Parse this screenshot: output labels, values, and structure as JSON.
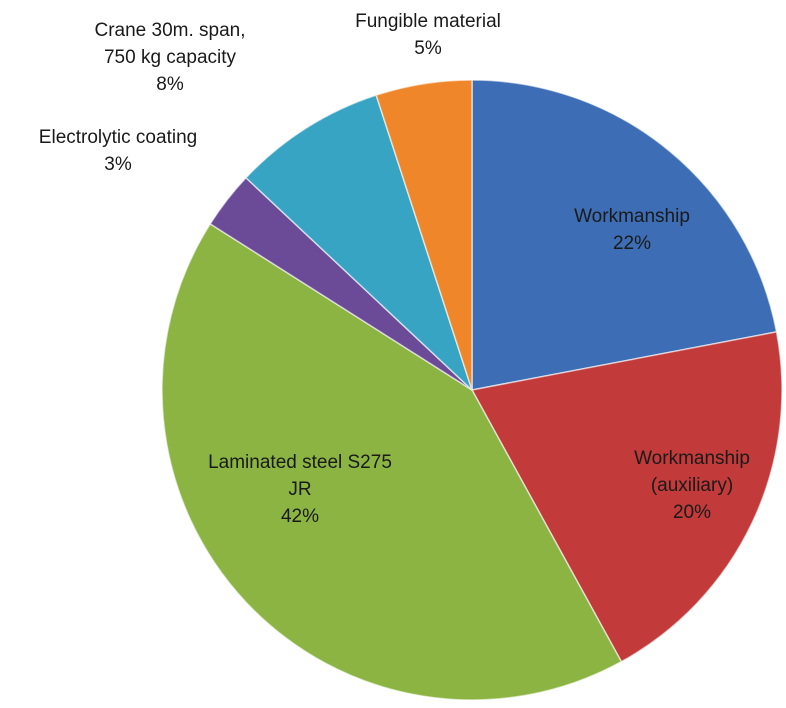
{
  "chart_data": {
    "type": "pie",
    "categories": [
      "Workmanship",
      "Workmanship (auxiliary)",
      "Laminated steel S275 JR",
      "Electrolytic coating",
      "Crane 30m. span, 750 kg capacity",
      "Fungible material"
    ],
    "values": [
      22,
      20,
      42,
      3,
      8,
      5
    ],
    "value_labels": [
      "22%",
      "20%",
      "42%",
      "3%",
      "8%",
      "5%"
    ],
    "colors": [
      "#3d6db4",
      "#c23a3a",
      "#8bb443",
      "#6b4b98",
      "#38a4c3",
      "#f0862a"
    ]
  }
}
